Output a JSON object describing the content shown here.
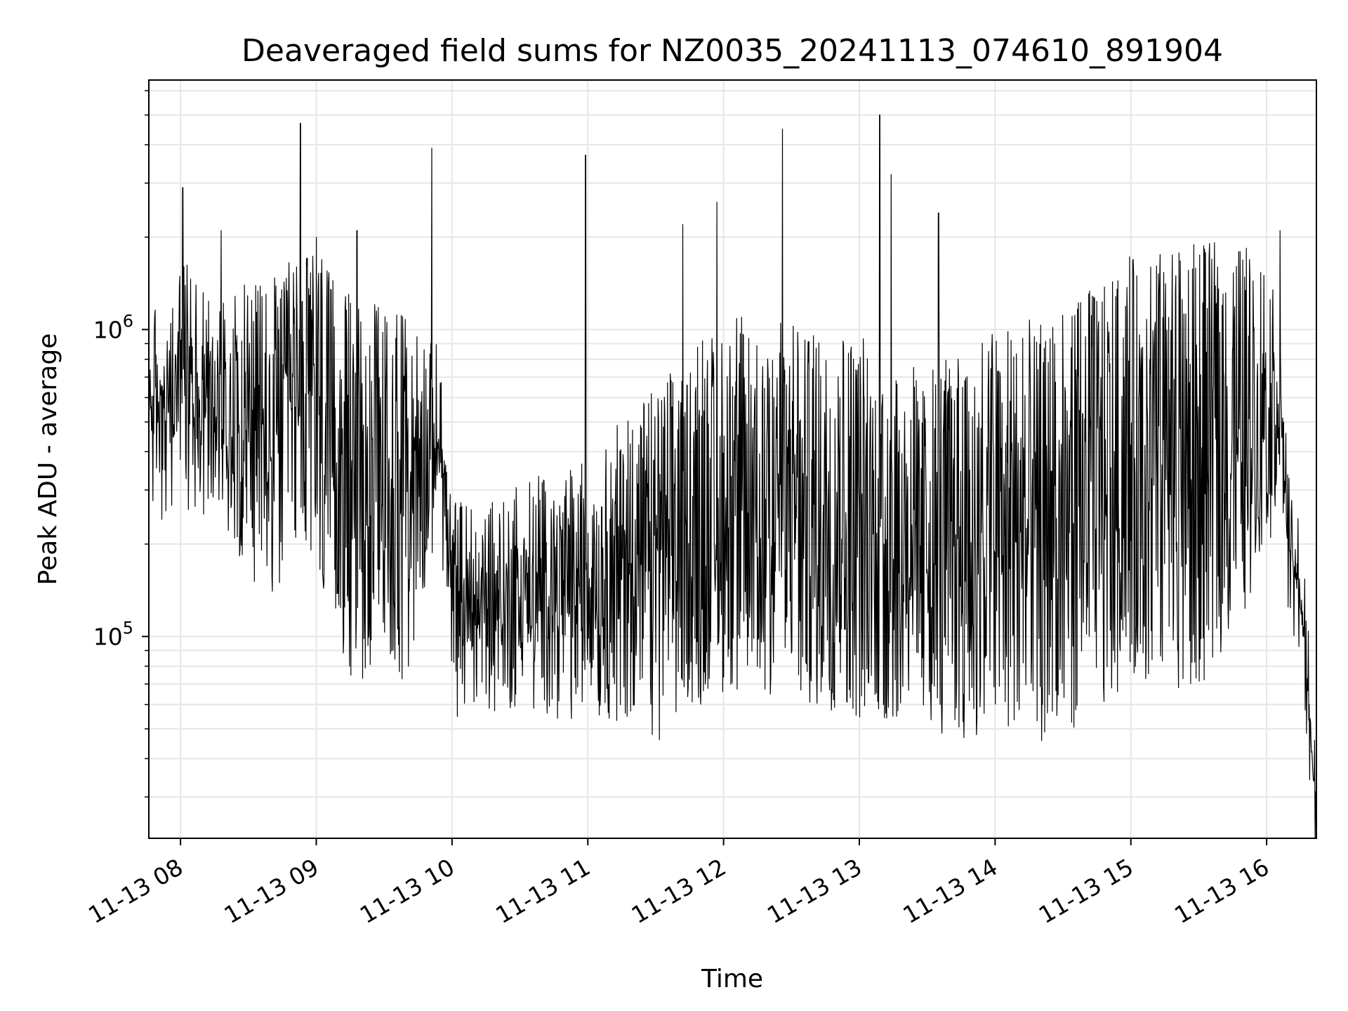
{
  "chart_data": {
    "type": "line",
    "title": "Deaveraged field sums for NZ0035_20241113_074610_891904",
    "xlabel": "Time",
    "ylabel": "Peak ADU - average",
    "y_scale": "log",
    "ylim": [
      22000,
      6500000
    ],
    "xlim": [
      "2024-11-13 07:46",
      "2024-11-13 16:22"
    ],
    "x_ticks": [
      "11-13 08",
      "11-13 09",
      "11-13 10",
      "11-13 11",
      "11-13 12",
      "11-13 13",
      "11-13 14",
      "11-13 15",
      "11-13 16"
    ],
    "y_ticks": [
      {
        "value": 100000,
        "base": "10",
        "exp": "5"
      },
      {
        "value": 1000000,
        "base": "10",
        "exp": "6"
      }
    ],
    "grid": true,
    "line_color": "#000000",
    "grid_color": "#e6e6e6",
    "series": [
      {
        "x": [
          "2024-11-13 07:46",
          "2024-11-13 07:55",
          "2024-11-13 08:00",
          "2024-11-13 08:20",
          "2024-11-13 08:40",
          "2024-11-13 08:55",
          "2024-11-13 09:15",
          "2024-11-13 09:40",
          "2024-11-13 09:55",
          "2024-11-13 10:00",
          "2024-11-13 10:30",
          "2024-11-13 11:00",
          "2024-11-13 11:30",
          "2024-11-13 12:00",
          "2024-11-13 12:30",
          "2024-11-13 13:00",
          "2024-11-13 13:30",
          "2024-11-13 14:00",
          "2024-11-13 14:30",
          "2024-11-13 15:00",
          "2024-11-13 15:30",
          "2024-11-13 15:50",
          "2024-11-13 16:05",
          "2024-11-13 16:10",
          "2024-11-13 16:15",
          "2024-11-13 16:22"
        ],
        "y_low": [
          450000,
          350000,
          450000,
          350000,
          200000,
          300000,
          120000,
          120000,
          350000,
          90000,
          90000,
          90000,
          75000,
          110000,
          100000,
          85000,
          80000,
          75000,
          75000,
          120000,
          110000,
          200000,
          400000,
          180000,
          120000,
          25000
        ],
        "y_high": [
          750000,
          700000,
          1100000,
          900000,
          900000,
          1300000,
          800000,
          700000,
          550000,
          180000,
          200000,
          250000,
          400000,
          700000,
          650000,
          600000,
          450000,
          650000,
          700000,
          1100000,
          1200000,
          1200000,
          900000,
          200000,
          150000,
          30000
        ],
        "peaks": [
          {
            "x": "2024-11-13 08:01",
            "y": 2900000
          },
          {
            "x": "2024-11-13 08:18",
            "y": 2100000
          },
          {
            "x": "2024-11-13 08:53",
            "y": 4700000
          },
          {
            "x": "2024-11-13 09:00",
            "y": 2000000
          },
          {
            "x": "2024-11-13 09:18",
            "y": 2100000
          },
          {
            "x": "2024-11-13 09:51",
            "y": 3900000
          },
          {
            "x": "2024-11-13 10:59",
            "y": 3700000
          },
          {
            "x": "2024-11-13 11:42",
            "y": 2200000
          },
          {
            "x": "2024-11-13 11:57",
            "y": 2600000
          },
          {
            "x": "2024-11-13 12:26",
            "y": 4500000
          },
          {
            "x": "2024-11-13 13:09",
            "y": 5000000
          },
          {
            "x": "2024-11-13 13:14",
            "y": 3200000
          },
          {
            "x": "2024-11-13 13:35",
            "y": 2400000
          },
          {
            "x": "2024-11-13 16:06",
            "y": 2100000
          }
        ]
      }
    ]
  }
}
